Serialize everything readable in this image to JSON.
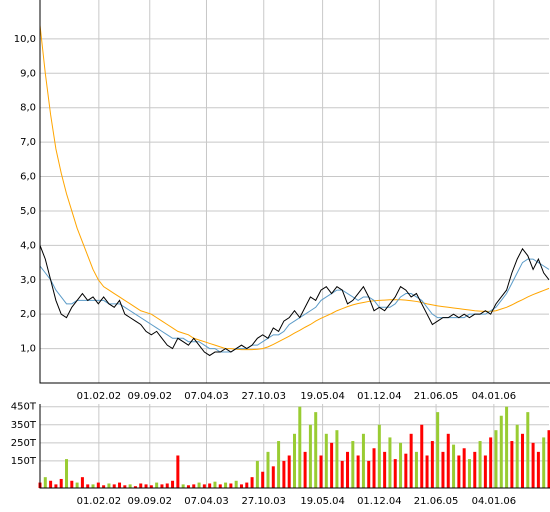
{
  "chart_data": [
    {
      "type": "line",
      "xlim": [
        0,
        96
      ],
      "xticks": [
        {
          "value": 11.1,
          "label": "01.02.02"
        },
        {
          "value": 20.7,
          "label": "09.09.02"
        },
        {
          "value": 31.4,
          "label": "07.04.03"
        },
        {
          "value": 42.2,
          "label": "27.10.03"
        },
        {
          "value": 53.3,
          "label": "19.05.04"
        },
        {
          "value": 64.0,
          "label": "01.12.04"
        },
        {
          "value": 74.7,
          "label": "21.06.05"
        },
        {
          "value": 85.6,
          "label": "04.01.06"
        }
      ],
      "ylim": [
        0,
        11.13
      ],
      "yticks": [
        {
          "value": 1,
          "label": "1,0"
        },
        {
          "value": 2,
          "label": "2,0"
        },
        {
          "value": 3,
          "label": "3,0"
        },
        {
          "value": 4,
          "label": "4,0"
        },
        {
          "value": 5,
          "label": "5,0"
        },
        {
          "value": 6,
          "label": "6,0"
        },
        {
          "value": 7,
          "label": "7,0"
        },
        {
          "value": 8,
          "label": "8,0"
        },
        {
          "value": 9,
          "label": "9,0"
        },
        {
          "value": 10,
          "label": "10,0"
        }
      ],
      "grid": true,
      "series": [
        {
          "color": "#ffa500",
          "values": [
            10.4,
            9.0,
            7.8,
            6.8,
            6.1,
            5.5,
            5.0,
            4.5,
            4.1,
            3.7,
            3.3,
            3.0,
            2.8,
            2.7,
            2.6,
            2.5,
            2.4,
            2.3,
            2.2,
            2.1,
            2.05,
            2.0,
            1.9,
            1.8,
            1.7,
            1.6,
            1.5,
            1.45,
            1.4,
            1.3,
            1.25,
            1.2,
            1.15,
            1.1,
            1.05,
            1.0,
            1.0,
            0.98,
            0.97,
            0.97,
            0.97,
            0.98,
            1.0,
            1.05,
            1.12,
            1.2,
            1.28,
            1.36,
            1.45,
            1.53,
            1.62,
            1.7,
            1.8,
            1.88,
            1.95,
            2.02,
            2.1,
            2.16,
            2.22,
            2.27,
            2.31,
            2.34,
            2.37,
            2.39,
            2.4,
            2.41,
            2.42,
            2.42,
            2.42,
            2.41,
            2.39,
            2.37,
            2.34,
            2.3,
            2.27,
            2.24,
            2.22,
            2.2,
            2.18,
            2.16,
            2.14,
            2.12,
            2.1,
            2.09,
            2.08,
            2.08,
            2.1,
            2.15,
            2.2,
            2.27,
            2.35,
            2.42,
            2.5,
            2.57,
            2.63,
            2.69,
            2.75
          ]
        },
        {
          "color": "#5b9bc8",
          "values": [
            3.4,
            3.2,
            3.0,
            2.7,
            2.5,
            2.3,
            2.3,
            2.4,
            2.4,
            2.4,
            2.4,
            2.4,
            2.4,
            2.3,
            2.3,
            2.3,
            2.2,
            2.1,
            2.0,
            1.9,
            1.8,
            1.7,
            1.6,
            1.5,
            1.4,
            1.3,
            1.3,
            1.3,
            1.2,
            1.2,
            1.2,
            1.1,
            1.0,
            1.0,
            0.9,
            0.9,
            0.9,
            1.0,
            1.0,
            1.0,
            1.1,
            1.1,
            1.2,
            1.3,
            1.4,
            1.4,
            1.5,
            1.7,
            1.8,
            1.9,
            2.0,
            2.1,
            2.2,
            2.4,
            2.5,
            2.6,
            2.7,
            2.7,
            2.6,
            2.5,
            2.4,
            2.5,
            2.5,
            2.4,
            2.2,
            2.2,
            2.2,
            2.3,
            2.5,
            2.6,
            2.6,
            2.5,
            2.4,
            2.2,
            2.0,
            1.9,
            1.9,
            1.9,
            1.9,
            1.9,
            1.9,
            2.0,
            2.0,
            2.0,
            2.0,
            2.1,
            2.2,
            2.4,
            2.6,
            2.9,
            3.2,
            3.5,
            3.6,
            3.6,
            3.5,
            3.4,
            3.3
          ]
        },
        {
          "color": "#000000",
          "values": [
            4.0,
            3.6,
            3.0,
            2.4,
            2.0,
            1.9,
            2.2,
            2.4,
            2.6,
            2.4,
            2.5,
            2.3,
            2.5,
            2.3,
            2.2,
            2.4,
            2.0,
            1.9,
            1.8,
            1.7,
            1.5,
            1.4,
            1.5,
            1.3,
            1.1,
            1.0,
            1.3,
            1.2,
            1.1,
            1.3,
            1.1,
            0.9,
            0.8,
            0.9,
            0.9,
            1.0,
            0.9,
            1.0,
            1.1,
            1.0,
            1.1,
            1.3,
            1.4,
            1.3,
            1.6,
            1.5,
            1.8,
            1.9,
            2.1,
            1.9,
            2.2,
            2.5,
            2.4,
            2.7,
            2.8,
            2.6,
            2.8,
            2.7,
            2.3,
            2.4,
            2.6,
            2.8,
            2.5,
            2.1,
            2.2,
            2.1,
            2.3,
            2.5,
            2.8,
            2.7,
            2.5,
            2.6,
            2.3,
            2.0,
            1.7,
            1.8,
            1.9,
            1.9,
            2.0,
            1.9,
            2.0,
            1.9,
            2.0,
            2.0,
            2.1,
            2.0,
            2.3,
            2.5,
            2.7,
            3.2,
            3.6,
            3.9,
            3.7,
            3.3,
            3.6,
            3.2,
            3.0
          ]
        }
      ]
    },
    {
      "type": "bar",
      "xlim": [
        0,
        96
      ],
      "xticks": [
        {
          "value": 11.1,
          "label": "01.02.02"
        },
        {
          "value": 20.7,
          "label": "09.09.02"
        },
        {
          "value": 31.4,
          "label": "07.04.03"
        },
        {
          "value": 42.2,
          "label": "27.10.03"
        },
        {
          "value": 53.3,
          "label": "19.05.04"
        },
        {
          "value": 64.0,
          "label": "01.12.04"
        },
        {
          "value": 74.7,
          "label": "21.06.05"
        },
        {
          "value": 85.6,
          "label": "04.01.06"
        }
      ],
      "ylim": [
        0,
        465
      ],
      "yticks": [
        {
          "value": 150,
          "label": "150T"
        },
        {
          "value": 250,
          "label": "250T"
        },
        {
          "value": 350,
          "label": "350T"
        },
        {
          "value": 450,
          "label": "450T"
        }
      ],
      "grid": true,
      "values": [
        30,
        60,
        40,
        20,
        50,
        160,
        40,
        30,
        60,
        20,
        20,
        30,
        15,
        25,
        20,
        30,
        15,
        20,
        10,
        25,
        20,
        15,
        30,
        20,
        25,
        40,
        180,
        20,
        15,
        20,
        30,
        20,
        25,
        35,
        20,
        30,
        25,
        40,
        20,
        30,
        60,
        150,
        90,
        200,
        120,
        260,
        150,
        180,
        300,
        450,
        200,
        350,
        420,
        180,
        300,
        250,
        320,
        150,
        200,
        260,
        180,
        300,
        150,
        220,
        350,
        200,
        280,
        160,
        250,
        190,
        300,
        200,
        350,
        180,
        260,
        420,
        200,
        300,
        240,
        180,
        220,
        160,
        200,
        260,
        180,
        280,
        320,
        400,
        450,
        260,
        350,
        300,
        420,
        250,
        200,
        280,
        320
      ],
      "colors": [
        "#ff0000",
        "#99cc33",
        "#ff0000",
        "#ff0000",
        "#ff0000",
        "#99cc33",
        "#ff0000",
        "#99cc33",
        "#ff0000",
        "#ff0000",
        "#99cc33",
        "#ff0000",
        "#ff0000",
        "#99cc33",
        "#ff0000",
        "#ff0000",
        "#ff0000",
        "#99cc33",
        "#ff0000",
        "#ff0000",
        "#ff0000",
        "#ff0000",
        "#99cc33",
        "#ff0000",
        "#ff0000",
        "#ff0000",
        "#ff0000",
        "#99cc33",
        "#ff0000",
        "#ff0000",
        "#99cc33",
        "#ff0000",
        "#ff0000",
        "#99cc33",
        "#ff0000",
        "#99cc33",
        "#ff0000",
        "#99cc33",
        "#ff0000",
        "#ff0000",
        "#ff0000",
        "#99cc33",
        "#ff0000",
        "#99cc33",
        "#ff0000",
        "#99cc33",
        "#ff0000",
        "#ff0000",
        "#99cc33",
        "#99cc33",
        "#ff0000",
        "#99cc33",
        "#99cc33",
        "#ff0000",
        "#99cc33",
        "#ff0000",
        "#99cc33",
        "#ff0000",
        "#ff0000",
        "#99cc33",
        "#ff0000",
        "#99cc33",
        "#ff0000",
        "#ff0000",
        "#99cc33",
        "#ff0000",
        "#99cc33",
        "#ff0000",
        "#99cc33",
        "#ff0000",
        "#ff0000",
        "#99cc33",
        "#ff0000",
        "#ff0000",
        "#ff0000",
        "#99cc33",
        "#ff0000",
        "#ff0000",
        "#99cc33",
        "#ff0000",
        "#ff0000",
        "#99cc33",
        "#ff0000",
        "#99cc33",
        "#ff0000",
        "#ff0000",
        "#99cc33",
        "#99cc33",
        "#99cc33",
        "#ff0000",
        "#99cc33",
        "#ff0000",
        "#99cc33",
        "#ff0000",
        "#ff0000",
        "#99cc33",
        "#ff0000"
      ]
    }
  ]
}
